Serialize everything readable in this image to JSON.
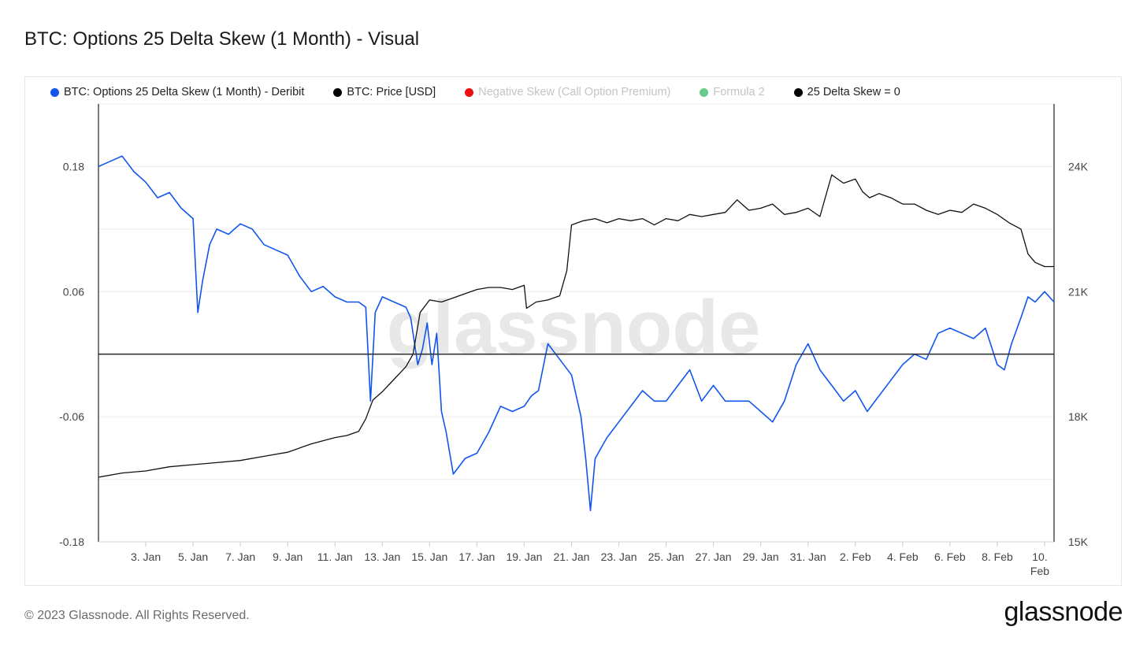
{
  "page": {
    "title": "BTC: Options 25 Delta Skew (1 Month) - Visual",
    "copyright": "© 2023 Glassnode. All Rights Reserved.",
    "logo_text": "glassnode",
    "watermark": "glassnode"
  },
  "legend": [
    {
      "label": "BTC: Options 25 Delta Skew (1 Month) - Deribit",
      "color": "#1155ee",
      "active": true
    },
    {
      "label": "BTC: Price [USD]",
      "color": "#000000",
      "active": true
    },
    {
      "label": "Negative Skew (Call Option Premium)",
      "color": "#ee1111",
      "active": false
    },
    {
      "label": "Formula 2",
      "color": "#66cc88",
      "active": false
    },
    {
      "label": "25 Delta Skew = 0",
      "color": "#000000",
      "active": true
    }
  ],
  "chart_data": {
    "type": "line",
    "title": "BTC: Options 25 Delta Skew (1 Month) - Visual",
    "x_range": [
      "2023-01-01",
      "2023-02-10"
    ],
    "x_ticks": [
      "3. Jan",
      "5. Jan",
      "7. Jan",
      "9. Jan",
      "11. Jan",
      "13. Jan",
      "15. Jan",
      "17. Jan",
      "19. Jan",
      "21. Jan",
      "23. Jan",
      "25. Jan",
      "27. Jan",
      "29. Jan",
      "31. Jan",
      "2. Feb",
      "4. Feb",
      "6. Feb",
      "8. Feb",
      "10. Feb"
    ],
    "x_tick_days": [
      2,
      4,
      6,
      8,
      10,
      12,
      14,
      16,
      18,
      20,
      22,
      24,
      26,
      28,
      30,
      32,
      34,
      36,
      38,
      40
    ],
    "y_left": {
      "ticks": [
        "0.18",
        "0.06",
        "-0.06",
        "-0.18"
      ],
      "tick_values": [
        0.18,
        0.06,
        -0.06,
        -0.18
      ],
      "range": [
        -0.18,
        0.24
      ]
    },
    "y_right": {
      "ticks": [
        "24K",
        "21K",
        "18K",
        "15K"
      ],
      "tick_values": [
        24000,
        21000,
        18000,
        15000
      ],
      "range": [
        15000,
        25500
      ]
    },
    "grid": true,
    "zero_line": {
      "name": "25 Delta Skew = 0",
      "value": 0
    },
    "series": [
      {
        "name": "BTC: Options 25 Delta Skew (1 Month) - Deribit",
        "axis": "left",
        "color": "#1155ee",
        "x": [
          0.0,
          0.5,
          1.0,
          1.5,
          2.0,
          2.5,
          3.0,
          3.5,
          4.0,
          4.2,
          4.4,
          4.7,
          5.0,
          5.5,
          6.0,
          6.5,
          7.0,
          7.5,
          8.0,
          8.5,
          9.0,
          9.5,
          10.0,
          10.5,
          11.0,
          11.3,
          11.5,
          11.7,
          12.0,
          12.5,
          13.0,
          13.2,
          13.5,
          13.7,
          13.9,
          14.1,
          14.3,
          14.5,
          14.7,
          15.0,
          15.5,
          16.0,
          16.5,
          17.0,
          17.5,
          18.0,
          18.3,
          18.6,
          19.0,
          19.5,
          20.0,
          20.2,
          20.4,
          20.6,
          20.8,
          21.0,
          21.5,
          22.0,
          22.5,
          23.0,
          23.5,
          24.0,
          24.5,
          25.0,
          25.5,
          26.0,
          26.5,
          27.0,
          27.5,
          28.0,
          28.5,
          29.0,
          29.5,
          30.0,
          30.5,
          31.0,
          31.5,
          32.0,
          32.5,
          33.0,
          33.5,
          34.0,
          34.5,
          35.0,
          35.5,
          36.0,
          36.5,
          37.0,
          37.5,
          38.0,
          38.3,
          38.6,
          39.0,
          39.3,
          39.6,
          40.0,
          40.4
        ],
        "values": [
          0.18,
          0.185,
          0.19,
          0.175,
          0.165,
          0.15,
          0.155,
          0.14,
          0.13,
          0.04,
          0.07,
          0.105,
          0.12,
          0.115,
          0.125,
          0.12,
          0.105,
          0.1,
          0.095,
          0.075,
          0.06,
          0.065,
          0.055,
          0.05,
          0.05,
          0.045,
          -0.045,
          0.04,
          0.055,
          0.05,
          0.045,
          0.035,
          -0.01,
          0.005,
          0.03,
          -0.01,
          0.02,
          -0.055,
          -0.075,
          -0.115,
          -0.1,
          -0.095,
          -0.075,
          -0.05,
          -0.055,
          -0.05,
          -0.04,
          -0.035,
          0.01,
          -0.005,
          -0.02,
          -0.04,
          -0.06,
          -0.1,
          -0.15,
          -0.1,
          -0.08,
          -0.065,
          -0.05,
          -0.035,
          -0.045,
          -0.045,
          -0.03,
          -0.015,
          -0.045,
          -0.03,
          -0.045,
          -0.045,
          -0.045,
          -0.055,
          -0.065,
          -0.045,
          -0.01,
          0.01,
          -0.015,
          -0.03,
          -0.045,
          -0.035,
          -0.055,
          -0.04,
          -0.025,
          -0.01,
          0.0,
          -0.005,
          0.02,
          0.025,
          0.02,
          0.015,
          0.025,
          -0.01,
          -0.015,
          0.01,
          0.035,
          0.055,
          0.05,
          0.06,
          0.05
        ]
      },
      {
        "name": "BTC: Price [USD]",
        "axis": "right",
        "color": "#111111",
        "x": [
          0.0,
          1.0,
          2.0,
          3.0,
          4.0,
          5.0,
          6.0,
          7.0,
          8.0,
          9.0,
          10.0,
          10.5,
          11.0,
          11.3,
          11.6,
          12.0,
          12.5,
          13.0,
          13.3,
          13.6,
          14.0,
          14.5,
          15.0,
          15.5,
          16.0,
          16.5,
          17.0,
          17.5,
          18.0,
          18.1,
          18.5,
          19.0,
          19.5,
          19.8,
          20.0,
          20.5,
          21.0,
          21.5,
          22.0,
          22.5,
          23.0,
          23.5,
          24.0,
          24.5,
          25.0,
          25.5,
          26.0,
          26.5,
          27.0,
          27.5,
          28.0,
          28.5,
          29.0,
          29.5,
          30.0,
          30.5,
          31.0,
          31.5,
          32.0,
          32.3,
          32.6,
          33.0,
          33.5,
          34.0,
          34.5,
          35.0,
          35.5,
          36.0,
          36.5,
          37.0,
          37.5,
          38.0,
          38.5,
          39.0,
          39.3,
          39.6,
          40.0,
          40.4
        ],
        "values": [
          16550,
          16650,
          16700,
          16800,
          16850,
          16900,
          16950,
          17050,
          17150,
          17350,
          17500,
          17550,
          17650,
          17950,
          18400,
          18600,
          18900,
          19200,
          19500,
          20500,
          20800,
          20750,
          20850,
          20950,
          21050,
          21100,
          21100,
          21050,
          21150,
          20600,
          20750,
          20800,
          20900,
          21500,
          22600,
          22700,
          22750,
          22650,
          22750,
          22700,
          22750,
          22600,
          22750,
          22700,
          22850,
          22800,
          22850,
          22900,
          23200,
          22950,
          23000,
          23100,
          22850,
          22900,
          23000,
          22800,
          23800,
          23600,
          23700,
          23400,
          23250,
          23350,
          23250,
          23100,
          23100,
          22950,
          22850,
          22950,
          22900,
          23100,
          23000,
          22850,
          22650,
          22500,
          21900,
          21700,
          21600,
          21600
        ]
      }
    ]
  }
}
